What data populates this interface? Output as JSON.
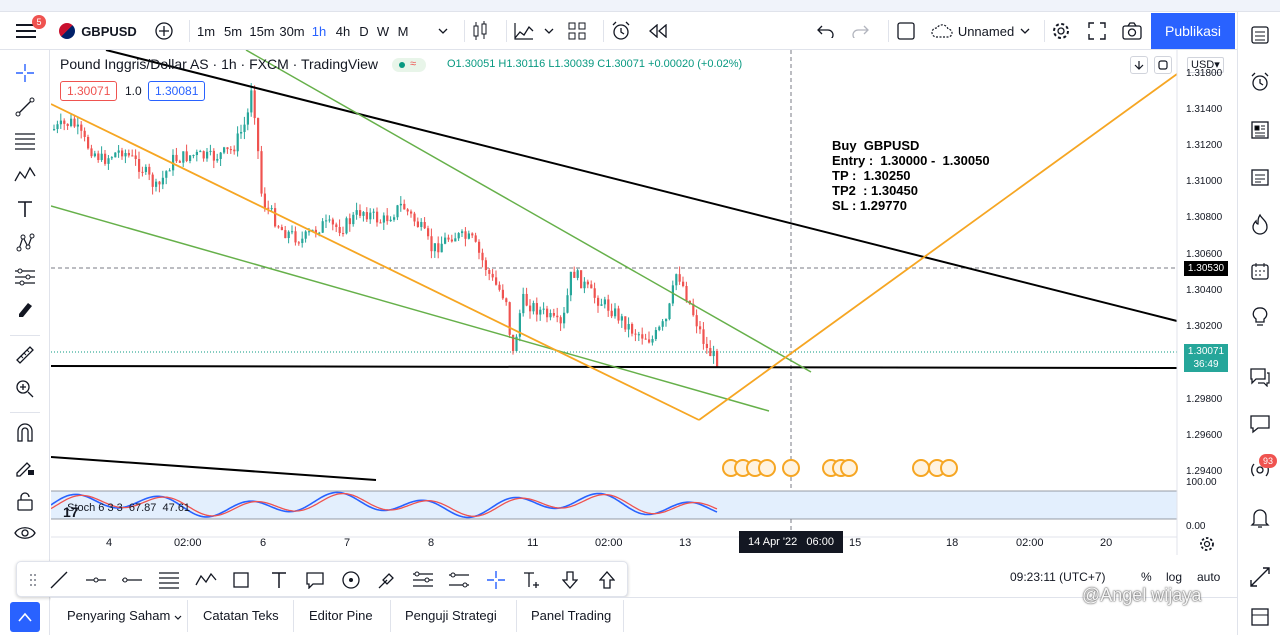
{
  "topbar": {
    "badge": "5",
    "symbol": "GBPUSD",
    "intervals": [
      "1m",
      "5m",
      "15m",
      "30m",
      "1h",
      "4h",
      "D",
      "W",
      "M"
    ],
    "active_interval": "1h",
    "layout_name": "Unnamed",
    "publish": "Publikasi"
  },
  "chart": {
    "title": "Pound Inggris/Dollar AS · 1h · FXCM · TradingView",
    "ohlc": "O1.30051 H1.30116 L1.30039 C1.30071 +0.00020 (+0.02%)",
    "sell_price": "1.30071",
    "spread": "1.0",
    "buy_price": "1.30081",
    "currency": "USD",
    "y_labels": [
      "1.31800",
      "1.31400",
      "1.31200",
      "1.31000",
      "1.30800",
      "1.30600",
      "1.30400",
      "1.30200",
      "1.29800",
      "1.29600",
      "1.29400"
    ],
    "price_tag_1": "1.30530",
    "price_tag_2": "1.30071",
    "countdown": "36:49",
    "stoch_label": "Stoch 6 3 3  67.87  47.61",
    "stoch_y": [
      "100.00",
      "0.00"
    ],
    "x_labels": [
      "4",
      "02:00",
      "6",
      "7",
      "8",
      "11",
      "02:00",
      "13",
      "15",
      "18",
      "02:00",
      "20"
    ],
    "crosshair_date": "14 Apr '22   06:00",
    "annotation": "Buy  GBPUSD\nEntry :  1.30000 -  1.30050\nTP :  1.30250\nTP2  : 1.30450\nSL : 1.29770"
  },
  "status": {
    "time": "09:23:11 (UTC+7)",
    "pct": "%",
    "log": "log",
    "auto": "auto"
  },
  "bottom_tabs": [
    "Penyaring Saham",
    "Catatan Teks",
    "Editor Pine",
    "Penguji Strategi",
    "Panel Trading"
  ],
  "rightbar": {
    "badge": "93"
  },
  "watermark": "@Angel wijaya",
  "colors": {
    "accent": "#2962ff",
    "up": "#26a69a",
    "down": "#ef5350",
    "orange": "#f6a623",
    "green": "#66b04a"
  }
}
